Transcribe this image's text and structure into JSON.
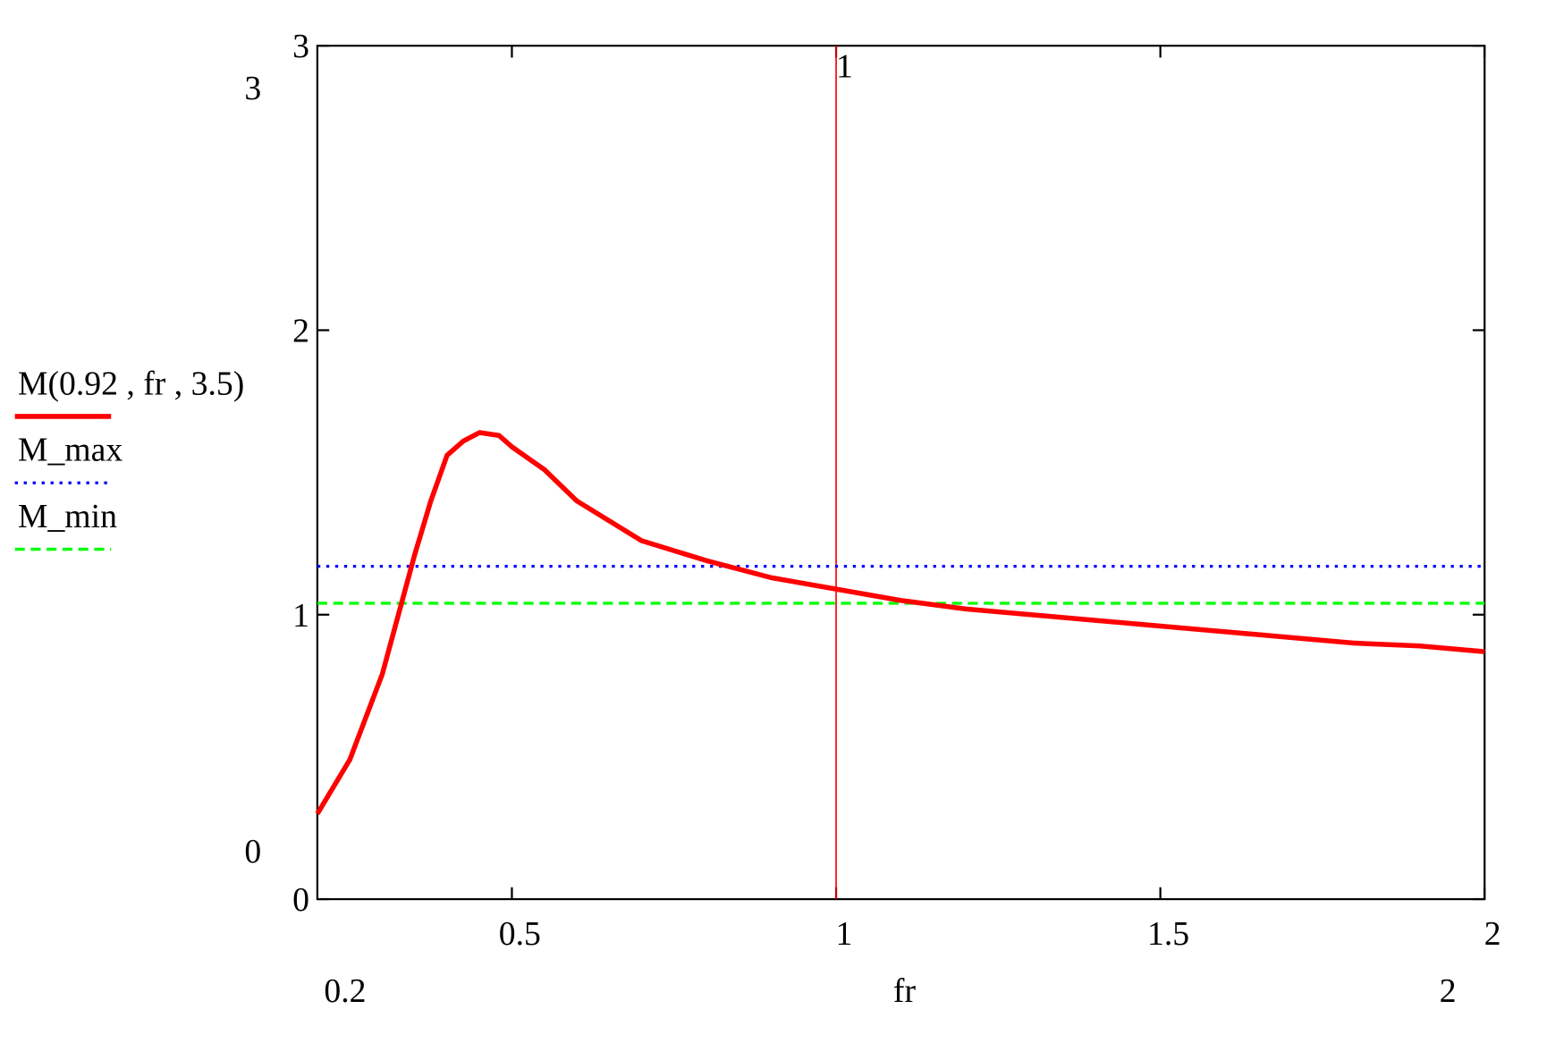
{
  "chart_data": {
    "type": "line",
    "x_label": "fr",
    "xlim": [
      0.2,
      2
    ],
    "ylim": [
      0,
      3
    ],
    "xticks": [
      0.5,
      1,
      1.5,
      2
    ],
    "yticks": [
      0,
      1,
      2,
      3
    ],
    "x": [
      0.2,
      0.25,
      0.3,
      0.35,
      0.375,
      0.4,
      0.425,
      0.45,
      0.48,
      0.5,
      0.55,
      0.6,
      0.7,
      0.8,
      0.9,
      1.0,
      1.1,
      1.2,
      1.3,
      1.4,
      1.5,
      1.6,
      1.7,
      1.8,
      1.9,
      2.0
    ],
    "series": [
      {
        "name": "M(0.92 , fr , 3.5)",
        "color": "#ff0000",
        "style": "solid",
        "values": [
          0.3,
          0.49,
          0.79,
          1.21,
          1.4,
          1.56,
          1.61,
          1.64,
          1.63,
          1.59,
          1.51,
          1.4,
          1.26,
          1.19,
          1.13,
          1.09,
          1.05,
          1.02,
          1.0,
          0.98,
          0.96,
          0.94,
          0.92,
          0.9,
          0.89,
          0.87
        ]
      }
    ],
    "hlines": [
      {
        "name": "M_max",
        "color": "#0000ff",
        "style": "dotted",
        "value": 1.17
      },
      {
        "name": "M_min",
        "color": "#00ff00",
        "style": "dashed",
        "value": 1.04
      }
    ],
    "vmarkers": [
      {
        "value": 1,
        "color": "#ff0000"
      }
    ]
  }
}
